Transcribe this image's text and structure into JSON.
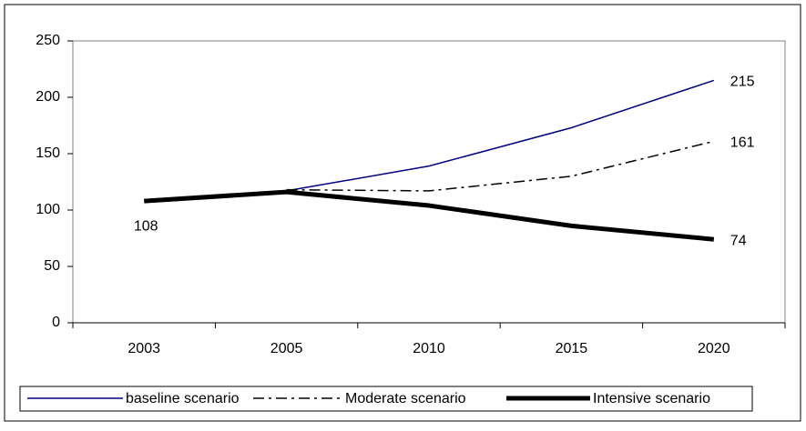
{
  "chart_data": {
    "type": "line",
    "categories": [
      "2003",
      "2005",
      "2010",
      "2015",
      "2020"
    ],
    "series": [
      {
        "name": "baseline scenario",
        "color": "#000080",
        "line_style": "thin",
        "values": [
          null,
          117,
          139,
          173,
          215
        ]
      },
      {
        "name": "Moderate scenario",
        "color": "#000000",
        "line_style": "dash-dot",
        "values": [
          null,
          118,
          117,
          130,
          161
        ]
      },
      {
        "name": "Intensive scenario",
        "color": "#000000",
        "line_style": "thick",
        "values": [
          108,
          116,
          104,
          86,
          74
        ]
      }
    ],
    "ylim": [
      0,
      250
    ],
    "yticks": [
      0,
      50,
      100,
      150,
      200,
      250
    ],
    "grid": false,
    "legend": "bottom"
  }
}
